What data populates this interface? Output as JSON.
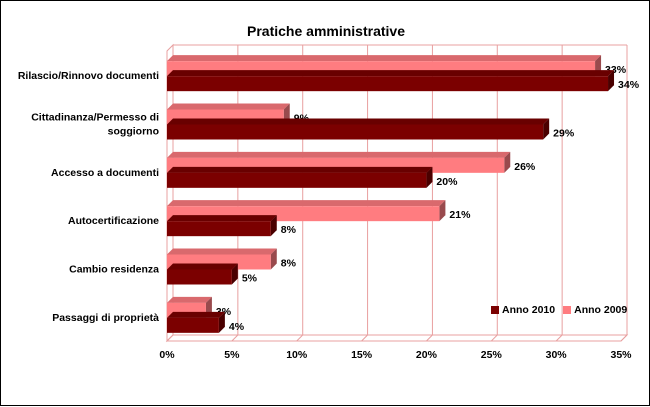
{
  "chart_data": {
    "type": "bar",
    "orientation": "horizontal",
    "title": "Pratiche amministrative",
    "categories": [
      "Rilascio/Rinnovo documenti",
      "Cittadinanza/Permesso di soggiorno",
      "Accesso a documenti",
      "Autocertificazione",
      "Cambio residenza",
      "Passaggi di proprietà"
    ],
    "series": [
      {
        "name": "Anno 2010",
        "color": "#7b0000",
        "values": [
          34,
          29,
          20,
          8,
          5,
          4
        ]
      },
      {
        "name": "Anno 2009",
        "color": "#ff7c80",
        "values": [
          33,
          9,
          26,
          21,
          8,
          3
        ]
      }
    ],
    "value_labels": {
      "Anno 2010": [
        "34%",
        "29%",
        "20%",
        "8%",
        "5%",
        "4%"
      ],
      "Anno 2009": [
        "33%",
        "9%",
        "26%",
        "21%",
        "8%",
        "3%"
      ]
    },
    "xlim": [
      0,
      35
    ],
    "xticks": [
      "0%",
      "5%",
      "10%",
      "15%",
      "20%",
      "25%",
      "30%",
      "35%"
    ],
    "grid": true,
    "legend_position": "bottom-right",
    "style": "3d"
  }
}
